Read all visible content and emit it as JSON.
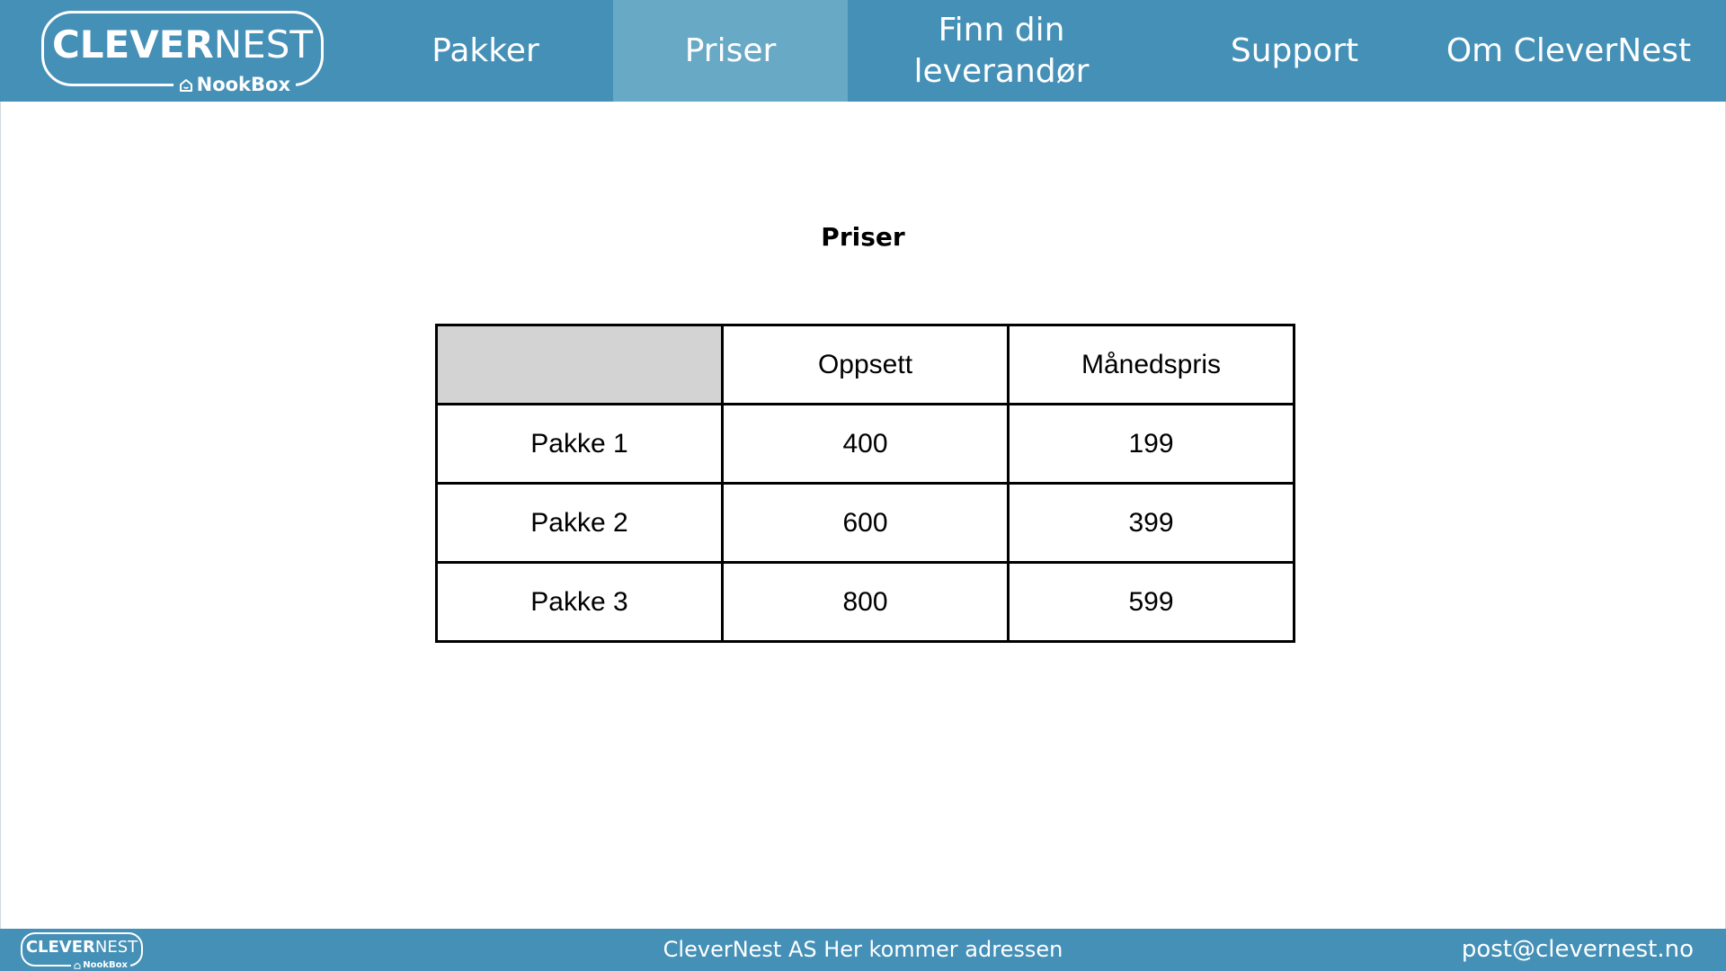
{
  "header": {
    "logo": {
      "brand_bold": "CLEVER",
      "brand_regular": "NEST",
      "sub": "NookBox",
      "icon": "home-icon"
    },
    "nav": [
      {
        "label": "Pakker",
        "active": false
      },
      {
        "label": "Priser",
        "active": true
      },
      {
        "label": "Finn din leverandør",
        "active": false
      },
      {
        "label": "Support",
        "active": false
      },
      {
        "label": "Om CleverNest",
        "active": false
      }
    ]
  },
  "main": {
    "title": "Priser",
    "table": {
      "columns": [
        "",
        "Oppsett",
        "Månedspris"
      ],
      "rows": [
        {
          "name": "Pakke 1",
          "oppsett": "400",
          "manedspris": "199"
        },
        {
          "name": "Pakke 2",
          "oppsett": "600",
          "manedspris": "399"
        },
        {
          "name": "Pakke 3",
          "oppsett": "800",
          "manedspris": "599"
        }
      ]
    }
  },
  "footer": {
    "logo": {
      "brand_bold": "CLEVER",
      "brand_regular": "NEST",
      "sub": "NookBox"
    },
    "address": "CleverNest AS Her kommer adressen",
    "email": "post@clevernest.no"
  },
  "colors": {
    "header_bg": "#4590b7",
    "nav_active_bg": "#68a9c5",
    "table_corner_bg": "#d3d3d3",
    "text_light": "#ffffff"
  }
}
